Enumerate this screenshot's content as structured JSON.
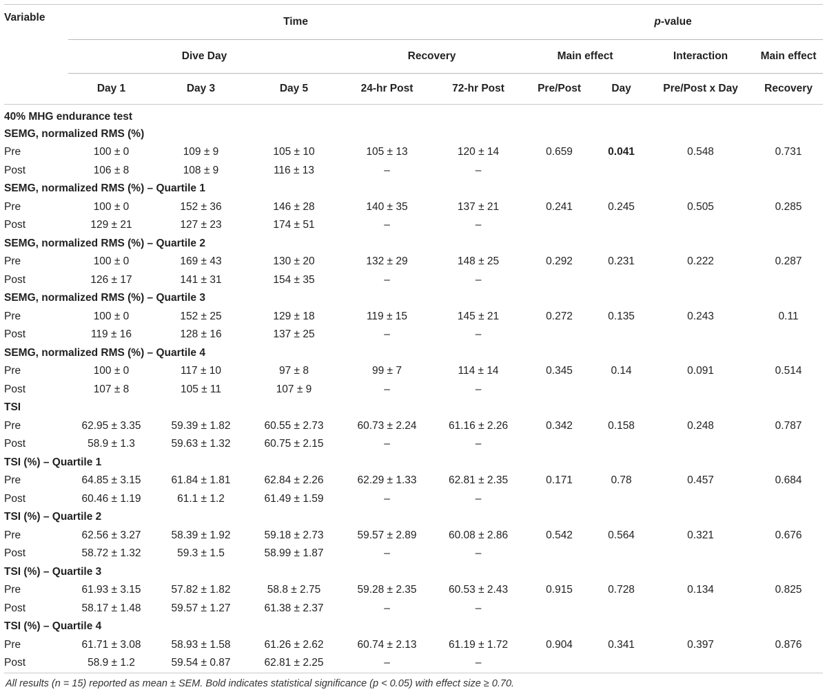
{
  "header": {
    "variable": "Variable",
    "time": "Time",
    "pvalue_italic": "p",
    "pvalue_rest": "-value",
    "dive_day": "Dive Day",
    "recovery": "Recovery",
    "main_effect": "Main effect",
    "interaction": "Interaction",
    "main_effect_2": "Main effect",
    "day1": "Day 1",
    "day3": "Day 3",
    "day5": "Day 5",
    "post24": "24-hr Post",
    "post72": "72-hr Post",
    "prepost": "Pre/Post",
    "day": "Day",
    "prepost_x_day": "Pre/Post x Day",
    "recovery_col": "Recovery"
  },
  "test_title": "40% MHG endurance test",
  "sections": [
    {
      "title": "SEMG, normalized RMS (%)",
      "pre": [
        "Pre",
        "100 ± 0",
        "109 ± 9",
        "105 ± 10",
        "105 ± 13",
        "120 ± 14",
        "0.659",
        "0.041",
        "0.548",
        "0.731"
      ],
      "post": [
        "Post",
        "106 ± 8",
        "108 ± 9",
        "116 ± 13",
        "–",
        "–",
        "",
        "",
        "",
        ""
      ]
    },
    {
      "title": "SEMG, normalized RMS (%) – Quartile 1",
      "pre": [
        "Pre",
        "100 ± 0",
        "152 ± 36",
        "146 ± 28",
        "140 ± 35",
        "137 ± 21",
        "0.241",
        "0.245",
        "0.505",
        "0.285"
      ],
      "post": [
        "Post",
        "129 ± 21",
        "127 ± 23",
        "174 ± 51",
        "–",
        "–",
        "",
        "",
        "",
        ""
      ]
    },
    {
      "title": "SEMG, normalized RMS (%) – Quartile 2",
      "pre": [
        "Pre",
        "100 ± 0",
        "169 ± 43",
        "130 ± 20",
        "132 ± 29",
        "148 ± 25",
        "0.292",
        "0.231",
        "0.222",
        "0.287"
      ],
      "post": [
        "Post",
        "126 ± 17",
        "141 ± 31",
        "154 ± 35",
        "–",
        "–",
        "",
        "",
        "",
        ""
      ]
    },
    {
      "title": "SEMG, normalized RMS (%) – Quartile 3",
      "pre": [
        "Pre",
        "100 ± 0",
        "152 ± 25",
        "129 ± 18",
        "119 ± 15",
        "145 ± 21",
        "0.272",
        "0.135",
        "0.243",
        "0.11"
      ],
      "post": [
        "Post",
        "119 ± 16",
        "128 ± 16",
        "137 ± 25",
        "–",
        "–",
        "",
        "",
        "",
        ""
      ]
    },
    {
      "title": "SEMG, normalized RMS (%) – Quartile 4",
      "pre": [
        "Pre",
        "100 ± 0",
        "117 ± 10",
        "97 ± 8",
        "99 ± 7",
        "114 ± 14",
        "0.345",
        "0.14",
        "0.091",
        "0.514"
      ],
      "post": [
        "Post",
        "107 ± 8",
        "105 ± 11",
        "107 ± 9",
        "–",
        "–",
        "",
        "",
        "",
        ""
      ]
    },
    {
      "title": "TSI",
      "pre": [
        "Pre",
        "62.95 ± 3.35",
        "59.39 ± 1.82",
        "60.55 ± 2.73",
        "60.73 ± 2.24",
        "61.16 ± 2.26",
        "0.342",
        "0.158",
        "0.248",
        "0.787"
      ],
      "post": [
        "Post",
        "58.9 ± 1.3",
        "59.63 ± 1.32",
        "60.75 ± 2.15",
        "–",
        "–",
        "",
        "",
        "",
        ""
      ]
    },
    {
      "title": "TSI (%) – Quartile 1",
      "pre": [
        "Pre",
        "64.85 ± 3.15",
        "61.84 ± 1.81",
        "62.84 ± 2.26",
        "62.29 ± 1.33",
        "62.81 ± 2.35",
        "0.171",
        "0.78",
        "0.457",
        "0.684"
      ],
      "post": [
        "Post",
        "60.46 ± 1.19",
        "61.1 ± 1.2",
        "61.49 ± 1.59",
        "–",
        "–",
        "",
        "",
        "",
        ""
      ]
    },
    {
      "title": "TSI (%) – Quartile 2",
      "pre": [
        "Pre",
        "62.56 ± 3.27",
        "58.39 ± 1.92",
        "59.18 ± 2.73",
        "59.57 ± 2.89",
        "60.08 ± 2.86",
        "0.542",
        "0.564",
        "0.321",
        "0.676"
      ],
      "post": [
        "Post",
        "58.72 ± 1.32",
        "59.3 ± 1.5",
        "58.99 ± 1.87",
        "–",
        "–",
        "",
        "",
        "",
        ""
      ]
    },
    {
      "title": "TSI (%) – Quartile 3",
      "pre": [
        "Pre",
        "61.93 ± 3.15",
        "57.82 ± 1.82",
        "58.8 ± 2.75",
        "59.28 ± 2.35",
        "60.53 ± 2.43",
        "0.915",
        "0.728",
        "0.134",
        "0.825"
      ],
      "post": [
        "Post",
        "58.17 ± 1.48",
        "59.57 ± 1.27",
        "61.38 ± 2.37",
        "–",
        "–",
        "",
        "",
        "",
        ""
      ]
    },
    {
      "title": "TSI (%) – Quartile 4",
      "pre": [
        "Pre",
        "61.71 ± 3.08",
        "58.93 ± 1.58",
        "61.26 ± 2.62",
        "60.74 ± 2.13",
        "61.19 ± 1.72",
        "0.904",
        "0.341",
        "0.397",
        "0.876"
      ],
      "post": [
        "Post",
        "58.9 ± 1.2",
        "59.54 ± 0.87",
        "62.81 ± 2.25",
        "–",
        "–",
        "",
        "",
        "",
        ""
      ]
    }
  ],
  "bold_cells": [
    [
      0,
      "pre",
      7
    ]
  ],
  "footnote": "All results (n = 15) reported as mean ± SEM. Bold indicates statistical significance (p < 0.05) with effect size ≥ 0.70."
}
